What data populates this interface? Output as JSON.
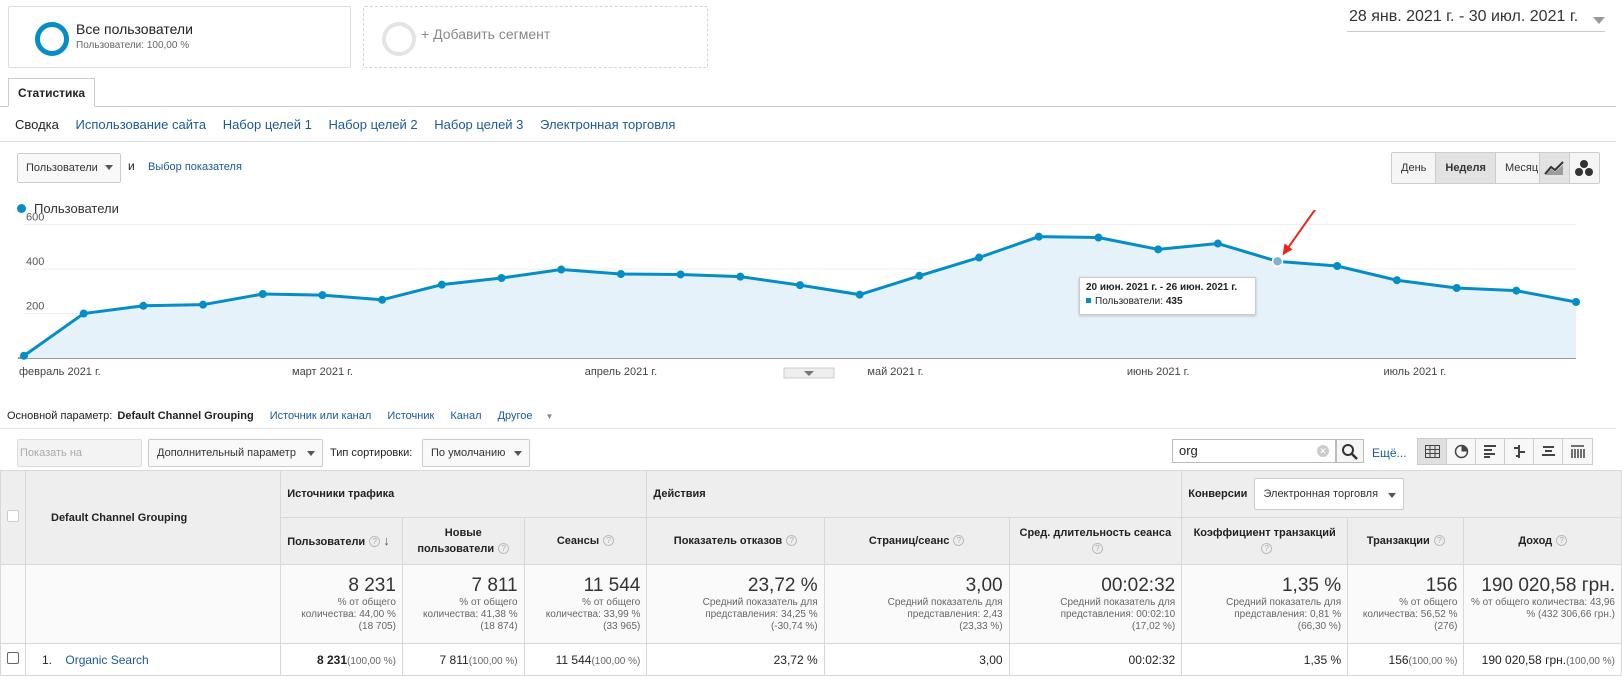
{
  "segments": {
    "all_title": "Все пользователи",
    "all_sub": "Пользователи: 100,00 %",
    "add": "+ Добавить сегмент"
  },
  "date_range": "28 янв. 2021 г. - 30 июл. 2021 г.",
  "tab": "Статистика",
  "subtabs": [
    "Сводка",
    "Использование сайта",
    "Набор целей 1",
    "Набор целей 2",
    "Набор целей 3",
    "Электронная торговля"
  ],
  "metric_dropdown": "Пользователи",
  "and": "и",
  "choose_metric": "Выбор показателя",
  "granularity": [
    "День",
    "Неделя",
    "Месяц"
  ],
  "legend": "Пользователи",
  "chart_data": {
    "type": "line",
    "series": [
      {
        "name": "Пользователи",
        "color": "#058dc7",
        "values": [
          10,
          200,
          235,
          240,
          288,
          283,
          262,
          330,
          360,
          398,
          378,
          376,
          366,
          328,
          285,
          370,
          452,
          546,
          542,
          489,
          515,
          435,
          414,
          350,
          315,
          303,
          252
        ]
      }
    ],
    "y_ticks": [
      "200",
      "400",
      "600"
    ],
    "ylim": [
      0,
      630
    ],
    "x_labels": [
      "февраль 2021 г.",
      "март 2021 г.",
      "апрель 2021 г.",
      "май 2021 г.",
      "июнь 2021 г.",
      "июль 2021 г."
    ],
    "highlight_index": 21
  },
  "tooltip": {
    "date": "20 июн. 2021 г. - 26 июн. 2021 г.",
    "label": "Пользователи:",
    "value": "435"
  },
  "primary": {
    "label": "Основной параметр:",
    "active": "Default Channel Grouping",
    "links": [
      "Источник или канал",
      "Источник",
      "Канал",
      "Другое"
    ]
  },
  "toolbar": {
    "plot": "Показать на диаграмме",
    "secondary": "Дополнительный параметр",
    "sort_label": "Тип сортировки:",
    "sort_value": "По умолчанию",
    "search_value": "org",
    "more": "Ещё..."
  },
  "table": {
    "dim_header": "Default Channel Grouping",
    "groups": {
      "acq": "Источники трафика",
      "beh": "Действия",
      "conv": "Конверсии",
      "conv_select": "Электронная торговля"
    },
    "cols": [
      "Пользователи",
      "Новые пользователи",
      "Сеансы",
      "Показатель отказов",
      "Страниц/сеанс",
      "Сред. длительность сеанса",
      "Коэффициент транзакций",
      "Транзакции",
      "Доход"
    ],
    "totals": [
      {
        "v": "8 231",
        "s1": "% от общего количества: 44,00 %",
        "s2": "(18 705)"
      },
      {
        "v": "7 811",
        "s1": "% от общего количества: 41,38 %",
        "s2": "(18 874)"
      },
      {
        "v": "11 544",
        "s1": "% от общего количества: 33,99 %",
        "s2": "(33 965)"
      },
      {
        "v": "23,72 %",
        "s1": "Средний показатель для представления: 34,25 %",
        "s2": "(-30,74 %)"
      },
      {
        "v": "3,00",
        "s1": "Средний показатель для представления: 2,43",
        "s2": "(23,33 %)"
      },
      {
        "v": "00:02:32",
        "s1": "Средний показатель для представления: 00:02:10",
        "s2": "(17,02 %)"
      },
      {
        "v": "1,35 %",
        "s1": "Средний показатель для представления: 0,81 %",
        "s2": "(66,30 %)"
      },
      {
        "v": "156",
        "s1": "% от общего количества: 56,52 %",
        "s2": "(276)"
      },
      {
        "v": "190 020,58 грн.",
        "s1": "% от общего количества: 43,96 % (432 306,66 грн.)",
        "s2": ""
      }
    ],
    "row": {
      "num": "1.",
      "name": "Organic Search",
      "cells": [
        {
          "v": "8 231",
          "p": "(100,00 %)"
        },
        {
          "v": "7 811",
          "p": "(100,00 %)"
        },
        {
          "v": "11 544",
          "p": "(100,00 %)"
        },
        {
          "v": "23,72 %",
          "p": ""
        },
        {
          "v": "3,00",
          "p": ""
        },
        {
          "v": "00:02:32",
          "p": ""
        },
        {
          "v": "1,35 %",
          "p": ""
        },
        {
          "v": "156",
          "p": "(100,00 %)"
        },
        {
          "v": "190 020,58 грн.",
          "p": "(100,00 %)"
        }
      ]
    }
  }
}
